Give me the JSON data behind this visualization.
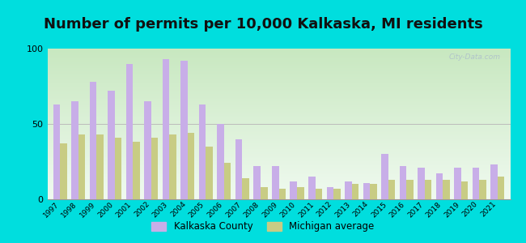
{
  "title": "Number of permits per 10,000 Kalkaska, MI residents",
  "years": [
    1997,
    1998,
    1999,
    2000,
    2001,
    2002,
    2003,
    2004,
    2005,
    2006,
    2007,
    2008,
    2009,
    2010,
    2011,
    2012,
    2013,
    2014,
    2015,
    2016,
    2017,
    2018,
    2019,
    2020,
    2021
  ],
  "kalkaska": [
    63,
    65,
    78,
    72,
    90,
    65,
    93,
    92,
    63,
    50,
    40,
    22,
    22,
    12,
    15,
    8,
    12,
    11,
    30,
    22,
    21,
    17,
    21,
    21,
    23
  ],
  "michigan": [
    37,
    43,
    43,
    41,
    38,
    41,
    43,
    44,
    35,
    24,
    14,
    8,
    7,
    8,
    7,
    7,
    10,
    10,
    13,
    13,
    13,
    13,
    12,
    13,
    15
  ],
  "kalkaska_color": "#c8aee8",
  "michigan_color": "#c8cc84",
  "bg_outer": "#00dede",
  "ylim": [
    0,
    100
  ],
  "yticks": [
    0,
    50,
    100
  ],
  "title_fontsize": 13,
  "bar_width": 0.38,
  "legend_labels": [
    "Kalkaska County",
    "Michigan average"
  ],
  "watermark": "City-Data.com"
}
